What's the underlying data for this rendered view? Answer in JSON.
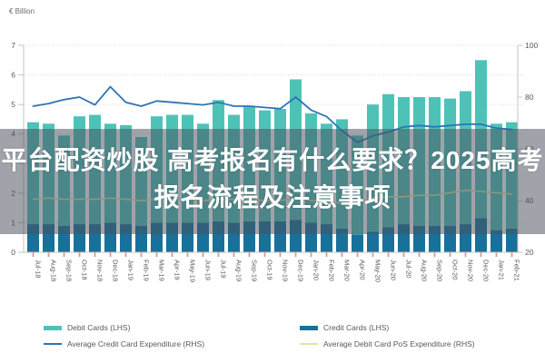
{
  "overlay": {
    "line1": "平台配资炒股 高考报名有什么要求？2025高考",
    "line2": "报名流程及注意事项"
  },
  "chart_data": {
    "type": "combo",
    "unit_label": "€ Billion",
    "categories": [
      "Jul-18",
      "Aug-18",
      "Sep-18",
      "Oct-18",
      "Nov-18",
      "Dec-18",
      "Jan-19",
      "Feb-19",
      "Mar-19",
      "Apr-19",
      "May-19",
      "Jun-19",
      "Jul-19",
      "Aug-19",
      "Sep-19",
      "Oct-19",
      "Nov-19",
      "Dec-19",
      "Jan-20",
      "Feb-20",
      "Mar-20",
      "Apr-20",
      "May-20",
      "Jun-20",
      "Jul-20",
      "Aug-20",
      "Sep-20",
      "Oct-20",
      "Nov-20",
      "Dec-20",
      "Jan-21",
      "Feb-21"
    ],
    "series": [
      {
        "name": "Debit Cards (LHS)",
        "type": "bar",
        "axis": "left",
        "stack_position": "top",
        "color": "#4fc2b8",
        "values": [
          3.45,
          3.4,
          3.05,
          3.65,
          3.7,
          3.35,
          3.35,
          3.0,
          3.6,
          3.65,
          3.65,
          3.35,
          4.1,
          3.65,
          3.9,
          3.75,
          3.8,
          4.75,
          3.7,
          3.4,
          3.7,
          3.35,
          4.3,
          4.5,
          4.3,
          4.35,
          4.35,
          4.3,
          4.5,
          5.35,
          3.6,
          3.6
        ]
      },
      {
        "name": "Credit Cards (LHS)",
        "type": "bar",
        "axis": "left",
        "stack_position": "bottom",
        "color": "#17719b",
        "values": [
          0.95,
          0.95,
          0.9,
          0.95,
          0.95,
          1.0,
          0.95,
          0.9,
          1.0,
          1.0,
          1.0,
          1.0,
          1.05,
          1.0,
          1.05,
          1.05,
          1.05,
          1.1,
          1.0,
          0.95,
          0.8,
          0.6,
          0.7,
          0.85,
          0.95,
          0.9,
          0.9,
          0.9,
          0.95,
          1.15,
          0.75,
          0.8
        ]
      },
      {
        "name": "Average Credit Card Expenditure (RHS)",
        "type": "line",
        "axis": "right",
        "color": "#2e74b5",
        "values": [
          76.5,
          77.5,
          79,
          80,
          77,
          84,
          78,
          76.5,
          78.5,
          78,
          77.5,
          77,
          78,
          76.5,
          76.5,
          76,
          75.5,
          80,
          75,
          72.5,
          67,
          62.5,
          65,
          66.5,
          68.5,
          69,
          68.5,
          69,
          69.5,
          69.5,
          68,
          67.5
        ]
      },
      {
        "name": "Average Debit Card PoS Expenditure (RHS)",
        "type": "line",
        "axis": "right",
        "color": "#dde4a5",
        "values": [
          40.5,
          41,
          40.5,
          40.5,
          40.5,
          41,
          40.5,
          40,
          40.5,
          40.5,
          40.5,
          40,
          40.5,
          40.5,
          40.5,
          40,
          40,
          41,
          40,
          39.5,
          39,
          39.5,
          41,
          41.5,
          41.5,
          42,
          42,
          43,
          44,
          43.5,
          43,
          42.5
        ]
      }
    ],
    "left_axis": {
      "min": 0,
      "max": 7,
      "ticks": [
        0,
        1,
        2,
        3,
        4,
        5,
        6,
        7
      ]
    },
    "right_axis": {
      "min": 20,
      "max": 100,
      "ticks": [
        20,
        40,
        60,
        80,
        100
      ]
    },
    "grid": "horizontal-dotted",
    "legend_position": "bottom",
    "stacking": "stacked bars: Credit Cards bottom (dark blue), Debit Cards top (teal)"
  },
  "colors": {
    "grid_line": "#d9d9d9",
    "axis_line": "#c4c4c4",
    "axis_text": "#595959",
    "x_tick_mark": "#e5968e",
    "overlay_background": "rgba(73,80,92,0.52)",
    "headline_text": "#ffffff"
  }
}
